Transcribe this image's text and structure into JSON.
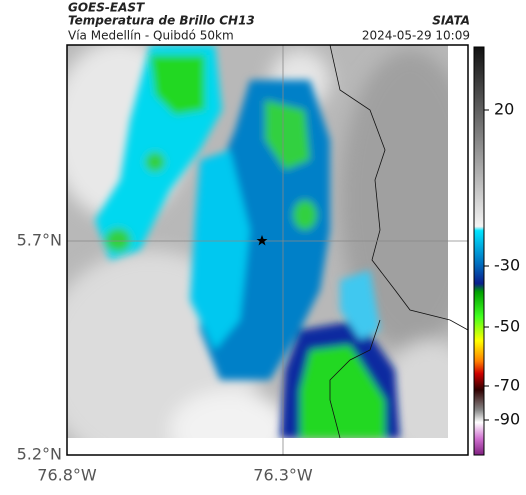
{
  "header": {
    "title": "GOES-EAST",
    "subtitle": "Temperatura de Brillo CH13",
    "route": "Vía Medellín - Quibdó 50km",
    "source": "SIATA",
    "timestamp": "2024-05-29 10:09"
  },
  "map": {
    "lat_ticks": [
      "5.7°N",
      "5.2°N"
    ],
    "lon_ticks": [
      "76.8°W",
      "76.3°W"
    ]
  },
  "colorbar": {
    "ticks": [
      20,
      -30,
      -50,
      -70,
      -90
    ]
  }
}
